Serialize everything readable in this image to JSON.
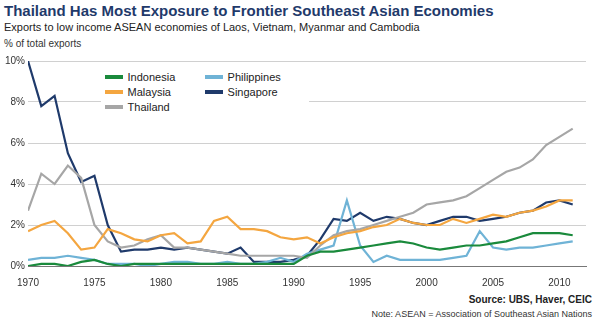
{
  "chart_data": {
    "type": "line",
    "title": "Thailand Has Most Exposure to Frontier Southeast Asian Economies",
    "subtitle": "Exports to low income ASEAN economies of Laos, Vietnam, Myanmar and Cambodia",
    "y_label": "% of total exports",
    "source": "Source: UBS, Haver, CEIC",
    "note": "Note: ASEAN = Association of Southeast Asian Nations",
    "x": [
      1970,
      1971,
      1972,
      1973,
      1974,
      1975,
      1976,
      1977,
      1978,
      1979,
      1980,
      1981,
      1982,
      1983,
      1984,
      1985,
      1986,
      1987,
      1988,
      1989,
      1990,
      1991,
      1992,
      1993,
      1994,
      1995,
      1996,
      1997,
      1998,
      1999,
      2000,
      2001,
      2002,
      2003,
      2004,
      2005,
      2006,
      2007,
      2008,
      2009,
      2010,
      2011
    ],
    "series": [
      {
        "name": "Indonesia",
        "color": "#1a8a3c",
        "values": [
          0.0,
          0.1,
          0.1,
          0.0,
          0.2,
          0.3,
          0.1,
          0.0,
          0.1,
          0.1,
          0.1,
          0.1,
          0.1,
          0.1,
          0.1,
          0.1,
          0.1,
          0.1,
          0.1,
          0.1,
          0.1,
          0.5,
          0.7,
          0.7,
          0.8,
          0.9,
          1.0,
          1.1,
          1.2,
          1.1,
          0.9,
          0.8,
          0.9,
          1.0,
          1.0,
          1.1,
          1.2,
          1.4,
          1.6,
          1.6,
          1.6,
          1.5
        ]
      },
      {
        "name": "Malaysia",
        "color": "#f4a640",
        "values": [
          1.7,
          2.0,
          2.2,
          1.6,
          0.8,
          0.9,
          1.8,
          1.6,
          1.3,
          1.2,
          1.5,
          1.6,
          1.1,
          1.2,
          2.2,
          2.4,
          1.8,
          1.8,
          1.7,
          1.4,
          1.3,
          1.4,
          1.1,
          1.4,
          1.6,
          1.7,
          1.9,
          2.0,
          2.3,
          2.1,
          2.0,
          2.0,
          2.3,
          2.1,
          2.3,
          2.5,
          2.4,
          2.6,
          2.7,
          2.9,
          3.2,
          3.2
        ]
      },
      {
        "name": "Thailand",
        "color": "#a6a6a6",
        "values": [
          2.7,
          4.5,
          4.0,
          4.9,
          4.3,
          2.0,
          1.2,
          0.9,
          1.0,
          1.3,
          1.5,
          0.9,
          0.9,
          0.8,
          0.7,
          0.6,
          0.5,
          0.5,
          0.5,
          0.5,
          0.5,
          0.4,
          1.0,
          1.5,
          1.7,
          1.8,
          2.0,
          2.2,
          2.4,
          2.6,
          3.0,
          3.1,
          3.2,
          3.4,
          3.8,
          4.2,
          4.6,
          4.8,
          5.2,
          5.9,
          6.3,
          6.7
        ]
      },
      {
        "name": "Philippines",
        "color": "#6fb3d6",
        "values": [
          0.3,
          0.4,
          0.4,
          0.5,
          0.4,
          0.3,
          0.1,
          0.1,
          0.1,
          0.0,
          0.1,
          0.2,
          0.2,
          0.1,
          0.1,
          0.2,
          0.1,
          0.1,
          0.2,
          0.4,
          0.2,
          0.6,
          0.8,
          1.0,
          3.2,
          1.0,
          0.2,
          0.5,
          0.3,
          0.3,
          0.3,
          0.3,
          0.4,
          0.5,
          1.7,
          0.9,
          0.8,
          0.9,
          0.9,
          1.0,
          1.1,
          1.2
        ]
      },
      {
        "name": "Singapore",
        "color": "#1f3a6b",
        "values": [
          10.0,
          7.8,
          8.3,
          5.5,
          4.1,
          4.4,
          2.0,
          0.7,
          0.8,
          0.8,
          0.9,
          0.8,
          0.9,
          0.8,
          0.7,
          0.6,
          0.9,
          0.2,
          0.2,
          0.2,
          0.3,
          0.5,
          1.3,
          2.3,
          2.2,
          2.6,
          2.2,
          2.4,
          2.3,
          2.1,
          2.0,
          2.2,
          2.4,
          2.4,
          2.2,
          2.3,
          2.4,
          2.6,
          2.7,
          3.1,
          3.2,
          3.0
        ]
      }
    ],
    "xlim": [
      1970,
      2012
    ],
    "xticks": [
      1970,
      1975,
      1980,
      1985,
      1990,
      1995,
      2000,
      2005,
      2010
    ],
    "ylim": [
      0,
      10
    ],
    "yticks": [
      {
        "value": 0,
        "label": "0%"
      },
      {
        "value": 2,
        "label": "2%"
      },
      {
        "value": 4,
        "label": "4%"
      },
      {
        "value": 6,
        "label": "6%"
      },
      {
        "value": 8,
        "label": "8%"
      },
      {
        "value": 10,
        "label": "10%"
      }
    ],
    "grid": true,
    "legend": "upper left"
  }
}
